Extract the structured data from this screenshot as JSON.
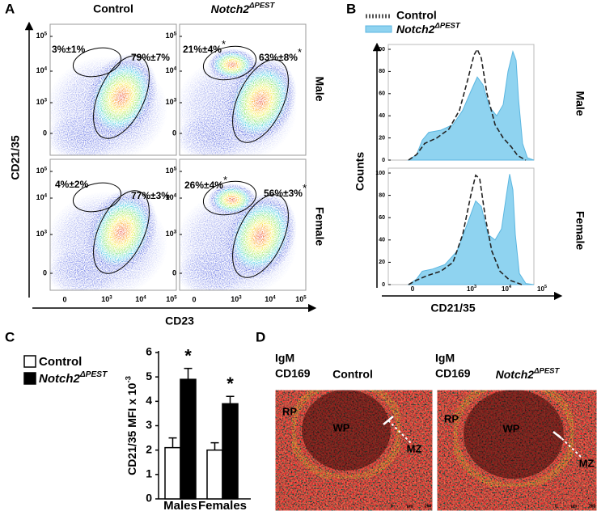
{
  "figure": {
    "A": {
      "label": "A",
      "columns": [
        "Control",
        {
          "base": "Notch2",
          "sup": "ΔPEST"
        }
      ],
      "rows": [
        "Male",
        "Female"
      ],
      "y_title": "CD21/35",
      "x_title": "CD23",
      "y_ticks": [
        {
          "base": "10",
          "sup": "5"
        },
        {
          "base": "10",
          "sup": "4"
        },
        {
          "base": "10",
          "sup": "3"
        },
        "0"
      ],
      "x_ticks": [
        "0",
        {
          "base": "10",
          "sup": "3"
        },
        {
          "base": "10",
          "sup": "4"
        },
        {
          "base": "10",
          "sup": "5"
        }
      ],
      "gates": [
        [
          {
            "text": "3%±1%"
          },
          {
            "text": "79%±7%"
          }
        ],
        [
          {
            "text": "21%±4%",
            "mark": "*"
          },
          {
            "text": "63%±8%",
            "mark": "*"
          }
        ],
        [
          {
            "text": "4%±2%"
          },
          {
            "text": "77%±3%"
          }
        ],
        [
          {
            "text": "26%±4%",
            "mark": "*"
          },
          {
            "text": "56%±3%",
            "mark": "*"
          }
        ]
      ]
    },
    "B": {
      "label": "B",
      "legend": [
        "Control",
        {
          "base": "Notch2",
          "sup": "ΔPEST"
        }
      ],
      "y_title": "Counts",
      "x_title": "CD21/35",
      "rows": [
        "Male",
        "Female"
      ],
      "y_ticks": [
        0,
        20,
        40,
        60,
        80,
        100
      ],
      "x_ticks": [
        "0",
        {
          "base": "10",
          "sup": "3"
        },
        {
          "base": "10",
          "sup": "4"
        },
        {
          "base": "10",
          "sup": "5"
        }
      ]
    },
    "C": {
      "label": "C"
    },
    "D": {
      "label": "D",
      "panels": [
        {
          "stains": [
            "IgM",
            "CD169"
          ],
          "title": "Control",
          "regions": [
            "RP",
            "WP",
            "MZ"
          ],
          "scale": [
            "0",
            "µm",
            "250"
          ]
        },
        {
          "stains": [
            "IgM",
            "CD169"
          ],
          "title": {
            "base": "Notch2",
            "sup": "ΔPEST"
          },
          "regions": [
            "RP",
            "WP",
            "MZ"
          ],
          "scale": [
            "0",
            "µm",
            "250"
          ]
        }
      ]
    }
  },
  "chart_data": {
    "type": "bar",
    "y_label": {
      "base": "CD21/35 MFI x 10",
      "sup": "-3"
    },
    "categories": [
      "Males",
      "Females"
    ],
    "series": [
      {
        "name": "Control",
        "color": "#ffffff",
        "values": [
          2.1,
          2.0
        ],
        "errors": [
          0.4,
          0.3
        ]
      },
      {
        "name": {
          "base": "Notch2",
          "sup": "ΔPEST"
        },
        "color": "#000000",
        "values": [
          4.9,
          3.9
        ],
        "errors": [
          0.45,
          0.3
        ],
        "annotations": [
          "*",
          "*"
        ]
      }
    ],
    "ylim": [
      0,
      6
    ],
    "yticks": [
      0,
      1,
      2,
      3,
      4,
      5,
      6
    ]
  }
}
